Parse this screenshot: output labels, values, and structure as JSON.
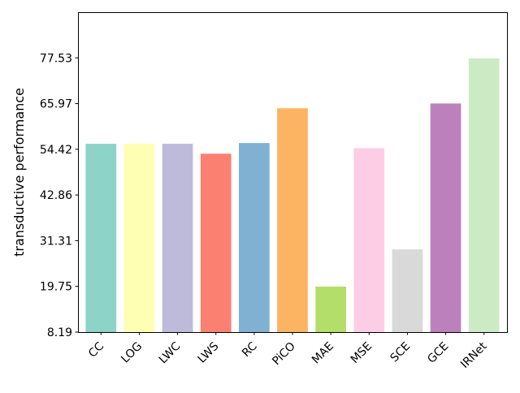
{
  "chart_data": {
    "type": "bar",
    "title": "",
    "xlabel": "",
    "ylabel": "transductive performance",
    "categories": [
      "CC",
      "LOG",
      "LWC",
      "LWS",
      "RC",
      "PiCO",
      "MAE",
      "MSE",
      "SCE",
      "GCE",
      "IRNet"
    ],
    "values": [
      55.8,
      55.8,
      55.8,
      53.3,
      56.0,
      64.8,
      19.7,
      54.7,
      29.1,
      66.0,
      77.4
    ],
    "colors": [
      "#8dd3c7",
      "#ffffb3",
      "#bebada",
      "#fb8072",
      "#80b1d3",
      "#fdb462",
      "#b3de69",
      "#fccde5",
      "#d9d9d9",
      "#bc80bd",
      "#ccebc5"
    ],
    "yticks": [
      "8.19",
      "19.75",
      "31.31",
      "42.86",
      "54.42",
      "65.97",
      "77.53"
    ],
    "ylim": [
      8.19,
      89.08
    ],
    "grid": false,
    "legend": "none"
  }
}
